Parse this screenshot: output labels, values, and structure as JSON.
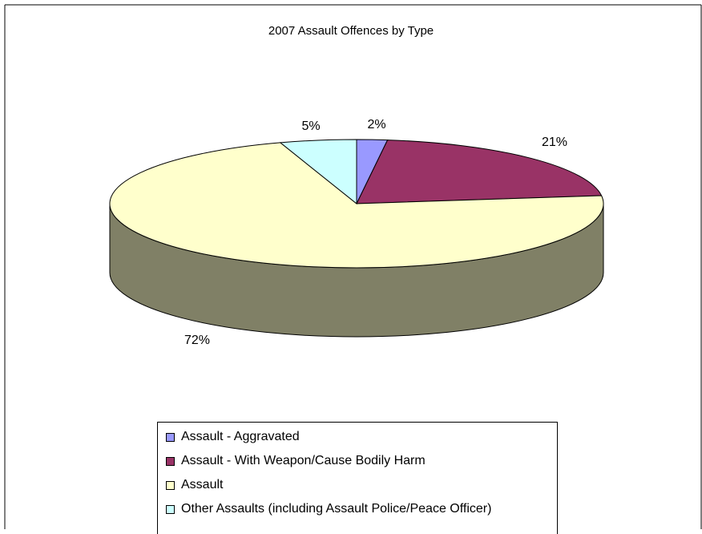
{
  "chart_data": {
    "type": "pie",
    "title": "2007 Assault Offences by Type",
    "slices": [
      {
        "name": "Assault - Aggravated",
        "value": 2,
        "label": "2%",
        "color": "#9999ff"
      },
      {
        "name": "Assault - With Weapon/Cause Bodily Harm",
        "value": 21,
        "label": "21%",
        "color": "#993366"
      },
      {
        "name": "Assault",
        "value": 72,
        "label": "72%",
        "color": "#ffffcc"
      },
      {
        "name": "Other Assaults (including Assault Police/Peace Officer)",
        "value": 5,
        "label": "5%",
        "color": "#ccffff"
      }
    ],
    "side_color": "#808066",
    "legend_position": "bottom"
  }
}
